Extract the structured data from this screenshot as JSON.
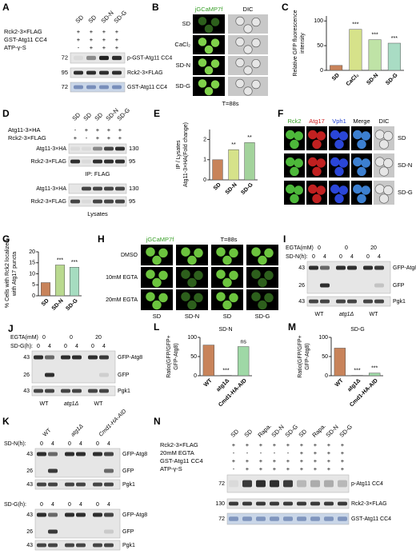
{
  "panels": {
    "a": {
      "label": "A",
      "lanes": [
        "SD",
        "SD",
        "SD-N",
        "SD-G"
      ],
      "rows": [
        {
          "name": "Rck2-3×FLAG",
          "signs": [
            "+",
            "+",
            "+",
            "+"
          ]
        },
        {
          "name": "GST-Atg11 CC4",
          "signs": [
            "+",
            "+",
            "+",
            "+"
          ]
        },
        {
          "name": "ATP-γ-S",
          "signs": [
            "-",
            "+",
            "+",
            "+"
          ]
        }
      ],
      "blots": [
        {
          "marker": 72,
          "name": "p-GST-Atg11 CC4"
        },
        {
          "marker": 95,
          "name": "Rck2-3×FLAG"
        },
        {
          "marker": 72,
          "name": "GST-Atg11 CC4"
        }
      ]
    },
    "b": {
      "label": "B",
      "channels": [
        "jGCaMP7f",
        "DIC"
      ],
      "conditions": [
        "SD",
        "CaCl₂",
        "SD-N",
        "SD-G"
      ],
      "time": "T=88s"
    },
    "c": {
      "label": "C",
      "chart": {
        "type": "bar",
        "ylabel": [
          "Relative GFP fluorescence",
          "intensity"
        ],
        "categories": [
          "SD",
          "CaCl₂",
          "SD-N",
          "SD-G"
        ],
        "values": [
          10,
          83,
          62,
          55
        ],
        "colors": [
          "#c8835a",
          "#d6e28a",
          "#bfe3a6",
          "#a9dcc4"
        ],
        "annotations": [
          null,
          "***",
          "***",
          "***"
        ],
        "ylim": [
          0,
          110
        ],
        "yticks": [
          0,
          50,
          100
        ]
      }
    },
    "d": {
      "label": "D",
      "lanes": [
        "SD",
        "SD",
        "SD",
        "SD-N",
        "SD-G"
      ],
      "rows": [
        {
          "name": "Atg11-3×HA",
          "signs": [
            "-",
            "+",
            "+",
            "+",
            "+"
          ]
        },
        {
          "name": "Rck2-3×FLAG",
          "signs": [
            "+",
            "-",
            "+",
            "+",
            "+"
          ]
        }
      ],
      "ip": {
        "label": "IP: FLAG",
        "blots": [
          {
            "name": "Atg11-3×HA",
            "marker": 130
          },
          {
            "name": "Rck2-3×FLAG",
            "marker": 95
          }
        ]
      },
      "lysates": {
        "label": "Lysates",
        "blots": [
          {
            "name": "Atg11-3×HA",
            "marker": 130
          },
          {
            "name": "Rck2-3×FLAG",
            "marker": 95
          }
        ]
      }
    },
    "e": {
      "label": "E",
      "chart": {
        "type": "bar",
        "ylabel": [
          "IP / Lysates",
          "Atg11-3×HA(Fold change)"
        ],
        "categories": [
          "SD",
          "SD-N",
          "SD-G"
        ],
        "values": [
          1.0,
          1.5,
          1.85
        ],
        "colors": [
          "#c8835a",
          "#d6e28a",
          "#a3d39c"
        ],
        "annotations": [
          null,
          "**",
          "**"
        ],
        "ylim": [
          0,
          2.5
        ],
        "yticks": [
          0,
          1,
          2
        ]
      }
    },
    "f": {
      "label": "F",
      "channels": [
        "Rck2",
        "Atg17",
        "Vph1",
        "Merge",
        "DIC"
      ],
      "conditions": [
        "SD",
        "SD-N",
        "SD-G"
      ]
    },
    "g": {
      "label": "G",
      "chart": {
        "type": "bar",
        "ylabel": [
          "% Cells with Rck2 localized",
          "with Atg17 puncta"
        ],
        "categories": [
          "SD",
          "SD-N",
          "SD-G"
        ],
        "values": [
          6,
          14,
          13
        ],
        "colors": [
          "#c8835a",
          "#b9d98f",
          "#a6dcc0"
        ],
        "annotations": [
          null,
          "***",
          "***"
        ],
        "ylim": [
          0,
          20
        ],
        "yticks": [
          0,
          5,
          10,
          15,
          20
        ]
      }
    },
    "h": {
      "label": "H",
      "channel": "jGCaMP7f",
      "time": "T=88s",
      "treatments": [
        "DMSO",
        "10mM EGTA",
        "20mM EGTA"
      ],
      "media": [
        "SD",
        "SD-N",
        "SD",
        "SD-G"
      ]
    },
    "i": {
      "label": "I",
      "treatment_name": "EGTA(mM)",
      "treatment_levels": [
        0,
        0,
        20
      ],
      "time_name": "SD-N(h):",
      "times": [
        0,
        4,
        0,
        4,
        0,
        4
      ],
      "markers": [
        43,
        26,
        43
      ],
      "bands": [
        "GFP-Atg8",
        "GFP",
        "Pgk1"
      ],
      "strains": [
        "WT",
        "atg1Δ",
        "WT"
      ]
    },
    "j": {
      "label": "J",
      "treatment_name": "EGTA(mM)",
      "treatment_levels": [
        0,
        0,
        20
      ],
      "time_name": "SD-G(h):",
      "times": [
        0,
        4,
        0,
        4,
        0,
        4
      ],
      "markers": [
        43,
        26,
        43
      ],
      "bands": [
        "GFP-Atg8",
        "GFP",
        "Pgk1"
      ],
      "strains": [
        "WT",
        "atg1Δ",
        "WT"
      ]
    },
    "k": {
      "label": "K",
      "strains": [
        "WT",
        "atg1Δ",
        "Cmd1-HA-AID"
      ],
      "parts": [
        {
          "time_name": "SD-N(h):",
          "times": [
            0,
            4,
            0,
            4,
            0,
            4
          ],
          "markers": [
            43,
            26,
            43
          ],
          "bands": [
            "GFP-Atg8",
            "GFP",
            "Pgk1"
          ]
        },
        {
          "time_name": "SD-G(h):",
          "times": [
            0,
            4,
            0,
            4,
            0,
            4
          ],
          "markers": [
            43,
            26,
            43
          ],
          "bands": [
            "GFP-Atg8",
            "GFP",
            "Pgk1"
          ]
        }
      ]
    },
    "l": {
      "label": "L",
      "condition": "SD-N",
      "chart": {
        "type": "bar",
        "ylabel": [
          "Ratio(GFP/GFP+",
          "GFP-Atg8)"
        ],
        "categories": [
          "WT",
          "atg1Δ",
          "Cmd1-HA-AID"
        ],
        "values": [
          80,
          1,
          76
        ],
        "colors": [
          "#c8835a",
          "#d8b48a",
          "#9fd8a6"
        ],
        "annotations": [
          null,
          "***",
          "ns"
        ],
        "ylim": [
          0,
          100
        ],
        "yticks": [
          0,
          50,
          100
        ]
      }
    },
    "m": {
      "label": "M",
      "condition": "SD-G",
      "chart": {
        "type": "bar",
        "ylabel": [
          "Ratio(GFP/GFP+",
          "GFP-Atg8)"
        ],
        "categories": [
          "WT",
          "atg1Δ",
          "Cmd1-HA-AID"
        ],
        "values": [
          72,
          1,
          7
        ],
        "colors": [
          "#c8835a",
          "#d8b48a",
          "#9fd8a6"
        ],
        "annotations": [
          null,
          "***",
          "***"
        ],
        "ylim": [
          0,
          100
        ],
        "yticks": [
          0,
          50,
          100
        ]
      }
    },
    "n": {
      "label": "N",
      "lanes": [
        "SD",
        "SD",
        "Rapa.",
        "SD-N",
        "SD-G",
        "SD",
        "Rapa.",
        "SD-N",
        "SD-G"
      ],
      "rows": [
        {
          "name": "Rck2-3×FLAG",
          "signs": [
            "+",
            "+",
            "+",
            "+",
            "+",
            "+",
            "+",
            "+",
            "+"
          ]
        },
        {
          "name": "20mM EGTA",
          "signs": [
            "-",
            "-",
            "-",
            "-",
            "-",
            "+",
            "+",
            "+",
            "+"
          ]
        },
        {
          "name": "GST-Atg11 CC4",
          "signs": [
            "+",
            "+",
            "+",
            "+",
            "+",
            "+",
            "+",
            "+",
            "+"
          ]
        },
        {
          "name": "ATP-γ-S",
          "signs": [
            "-",
            "+",
            "+",
            "+",
            "+",
            "+",
            "+",
            "+",
            "+"
          ]
        }
      ],
      "blots": [
        {
          "marker": 72,
          "name": "p-Atg11 CC4"
        },
        {
          "marker": 130,
          "name": "Rck2-3×FLAG"
        },
        {
          "marker": 72,
          "name": "GST-Atg11 CC4"
        }
      ]
    }
  }
}
